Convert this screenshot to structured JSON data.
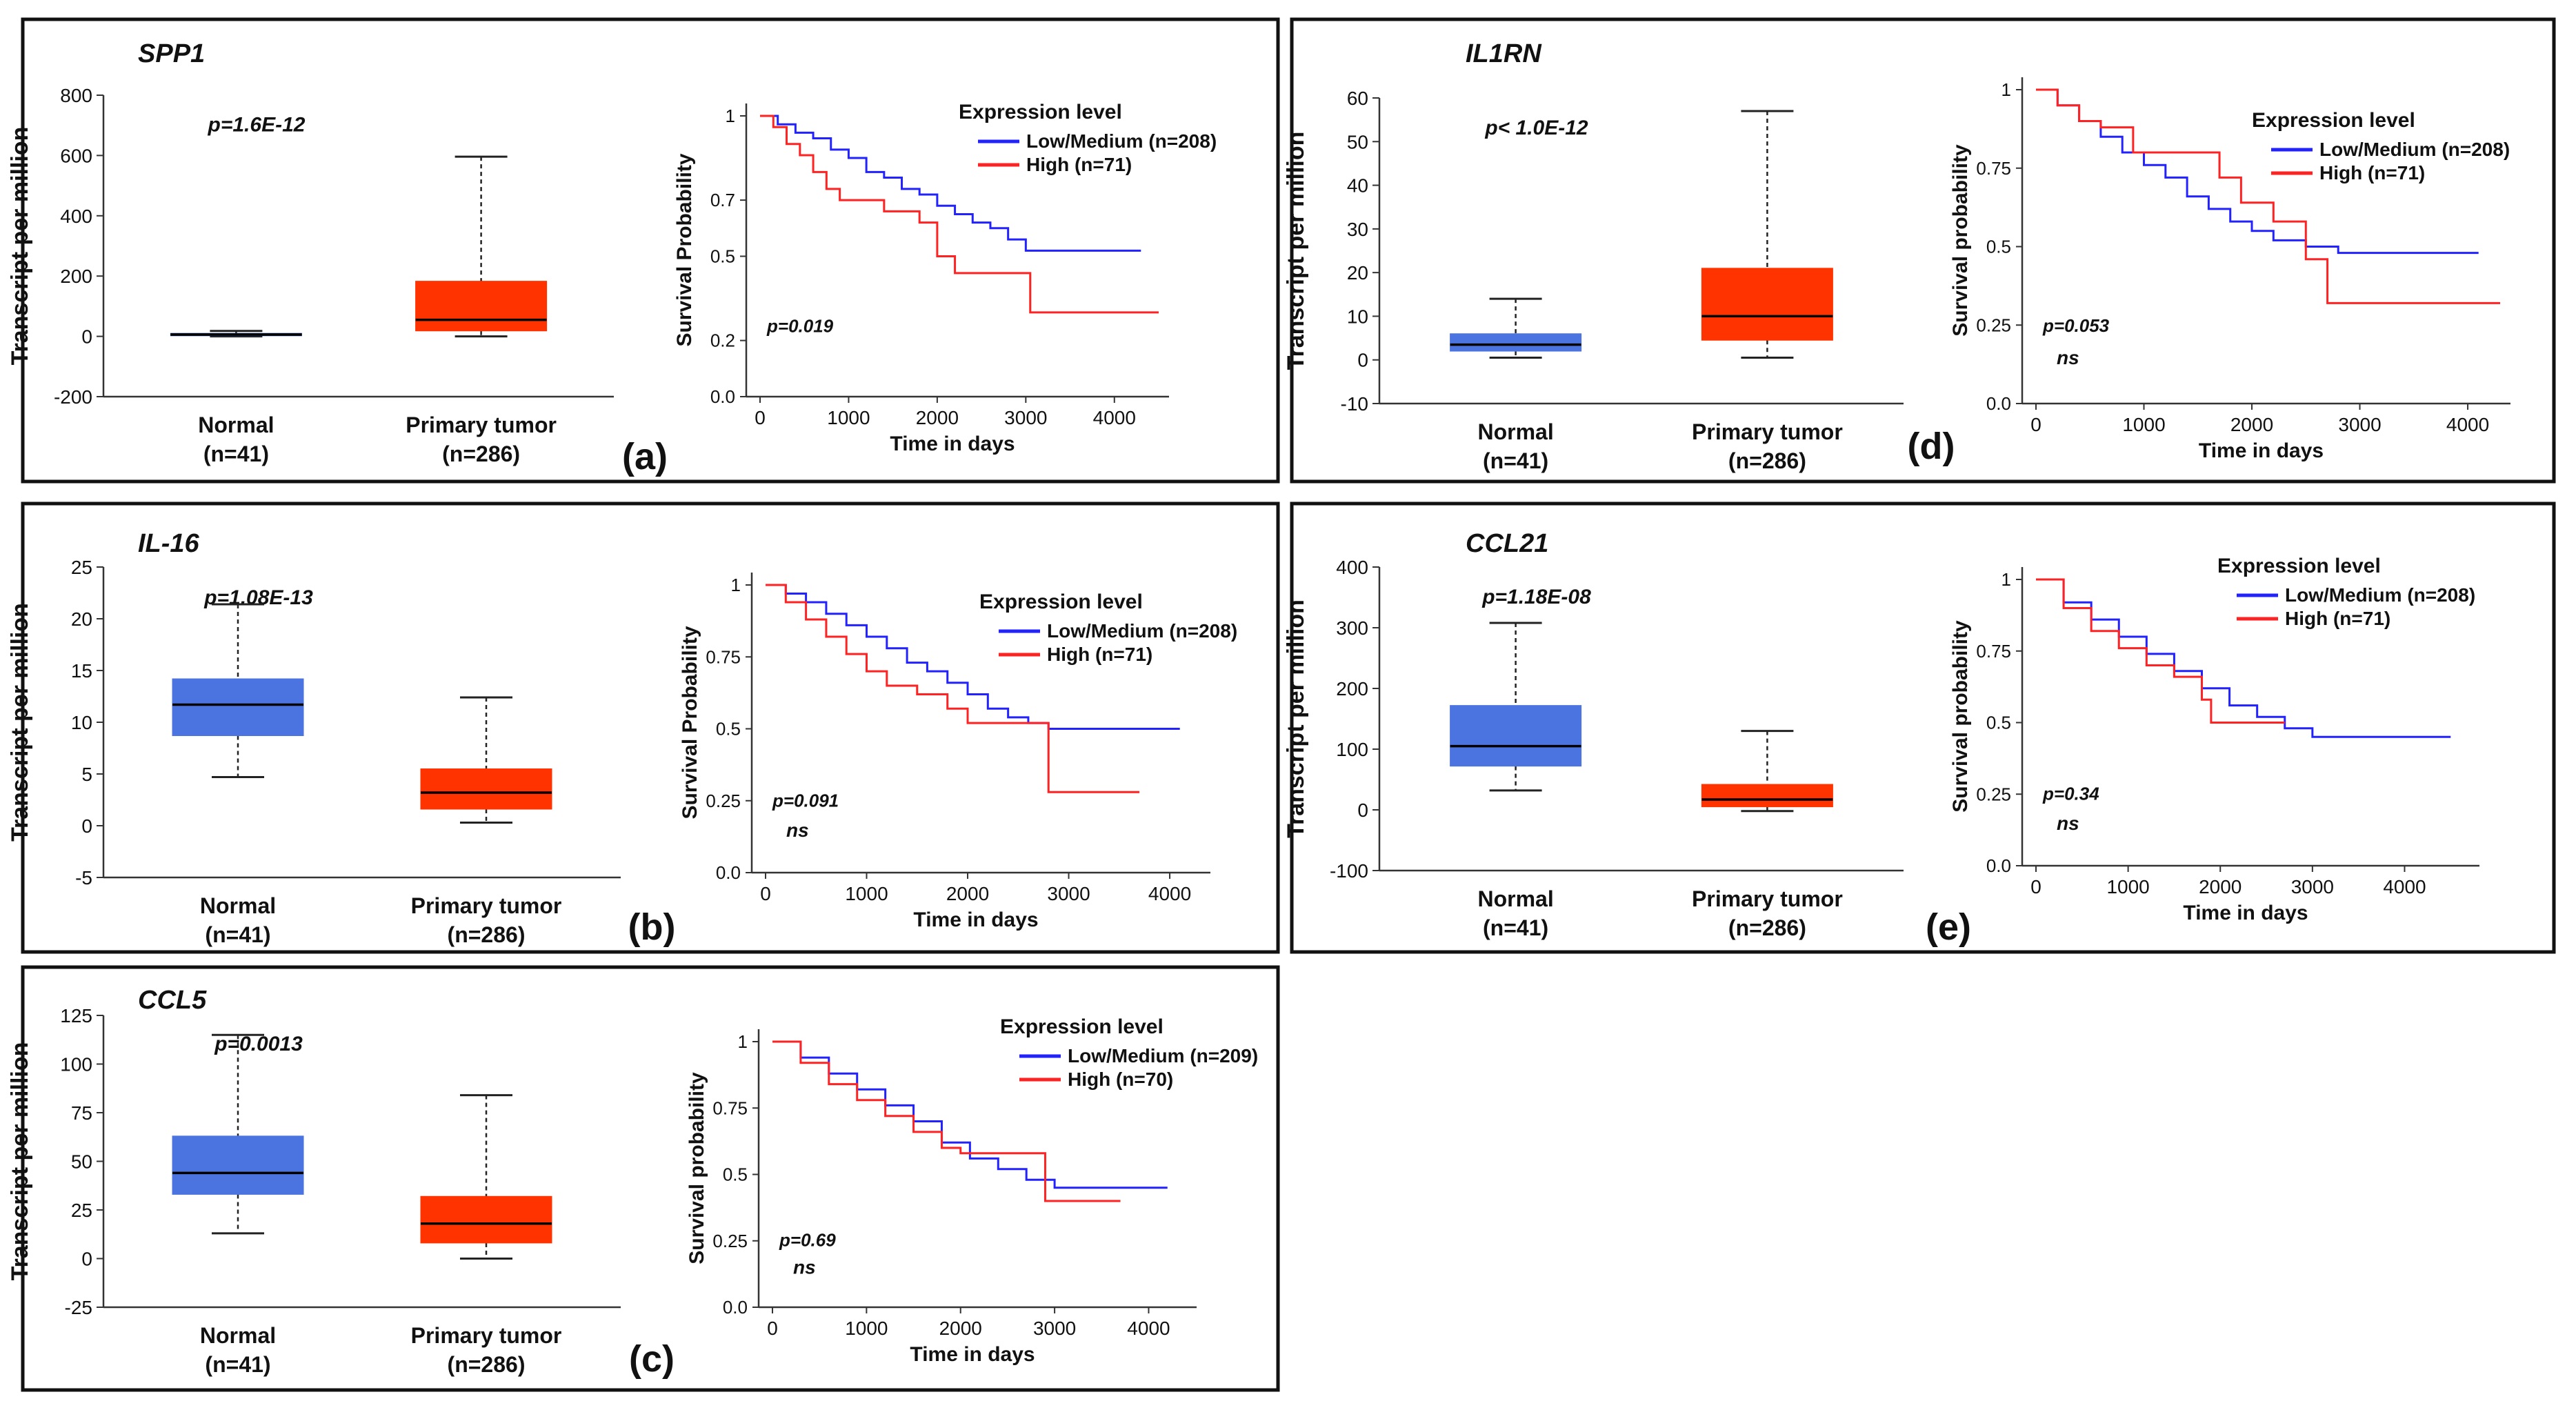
{
  "panels": [
    {
      "id": "a",
      "gene": "SPP1",
      "letter": "(a)",
      "box": {
        "ylabel": "Transcript per million",
        "yticks": [
          "800",
          "600",
          "400",
          "200",
          "0",
          "-200"
        ],
        "ymin": -200,
        "ymax": 800,
        "pvalue": "p=1.6E-12",
        "groups": [
          {
            "name": "Normal",
            "n": "(n=41)",
            "color": "#1f3b8f",
            "q1": 2,
            "median": 6,
            "q3": 10,
            "wmin": 0,
            "wmax": 18
          },
          {
            "name": "Primary tumor",
            "n": "(n=286)",
            "color": "#ff3300",
            "q1": 18,
            "median": 55,
            "q3": 183,
            "wmin": 0,
            "wmax": 596
          }
        ]
      },
      "km": {
        "ylabel": "Survival Probability",
        "xlabel": "Time in days",
        "yticks": [
          "1",
          "0.7",
          "0.5",
          "0.2",
          "0.0"
        ],
        "xticks": [
          "0",
          "1000",
          "2000",
          "3000",
          "4000"
        ],
        "xmax": 4500,
        "pvalue": "p=0.019",
        "ns": "",
        "legend_title": "Expression level",
        "series": [
          {
            "name": "Low/Medium (n=208)",
            "color": "#2222ff",
            "points": [
              [
                0,
                1
              ],
              [
                200,
                0.97
              ],
              [
                400,
                0.94
              ],
              [
                600,
                0.92
              ],
              [
                800,
                0.88
              ],
              [
                1000,
                0.85
              ],
              [
                1200,
                0.8
              ],
              [
                1400,
                0.78
              ],
              [
                1600,
                0.74
              ],
              [
                1800,
                0.72
              ],
              [
                2000,
                0.68
              ],
              [
                2200,
                0.65
              ],
              [
                2400,
                0.62
              ],
              [
                2600,
                0.6
              ],
              [
                2800,
                0.56
              ],
              [
                3000,
                0.52
              ],
              [
                3500,
                0.52
              ],
              [
                4300,
                0.52
              ]
            ]
          },
          {
            "name": "High (n=71)",
            "color": "#ff2222",
            "points": [
              [
                0,
                1
              ],
              [
                150,
                0.96
              ],
              [
                300,
                0.9
              ],
              [
                450,
                0.86
              ],
              [
                600,
                0.8
              ],
              [
                750,
                0.74
              ],
              [
                900,
                0.7
              ],
              [
                1200,
                0.7
              ],
              [
                1400,
                0.66
              ],
              [
                1800,
                0.62
              ],
              [
                2000,
                0.5
              ],
              [
                2200,
                0.44
              ],
              [
                2900,
                0.44
              ],
              [
                3050,
                0.3
              ],
              [
                4500,
                0.3
              ]
            ]
          }
        ]
      }
    },
    {
      "id": "b",
      "gene": "IL-16",
      "letter": "(b)",
      "box": {
        "ylabel": "Transcript per million",
        "yticks": [
          "25",
          "20",
          "15",
          "10",
          "5",
          "0",
          "-5"
        ],
        "ymin": -5,
        "ymax": 25,
        "pvalue": "p=1.08E-13",
        "groups": [
          {
            "name": "Normal",
            "n": "(n=41)",
            "color": "#4c74e0",
            "q1": 8.7,
            "median": 11.7,
            "q3": 14.2,
            "wmin": 4.7,
            "wmax": 21.4
          },
          {
            "name": "Primary tumor",
            "n": "(n=286)",
            "color": "#ff3300",
            "q1": 1.6,
            "median": 3.2,
            "q3": 5.5,
            "wmin": 0.3,
            "wmax": 12.4
          }
        ]
      },
      "km": {
        "ylabel": "Survival Probability",
        "xlabel": "Time in days",
        "yticks": [
          "1",
          "0.75",
          "0.5",
          "0.25",
          "0.0"
        ],
        "xticks": [
          "0",
          "1000",
          "2000",
          "3000",
          "4000"
        ],
        "xmax": 4300,
        "pvalue": "p=0.091",
        "ns": "ns",
        "legend_title": "Expression level",
        "series": [
          {
            "name": "Low/Medium (n=208)",
            "color": "#2222ff",
            "points": [
              [
                0,
                1
              ],
              [
                200,
                0.97
              ],
              [
                400,
                0.94
              ],
              [
                600,
                0.9
              ],
              [
                800,
                0.86
              ],
              [
                1000,
                0.82
              ],
              [
                1200,
                0.78
              ],
              [
                1400,
                0.73
              ],
              [
                1600,
                0.7
              ],
              [
                1800,
                0.66
              ],
              [
                2000,
                0.62
              ],
              [
                2200,
                0.57
              ],
              [
                2400,
                0.54
              ],
              [
                2600,
                0.52
              ],
              [
                2800,
                0.5
              ],
              [
                3200,
                0.5
              ],
              [
                4100,
                0.5
              ]
            ]
          },
          {
            "name": "High (n=71)",
            "color": "#ff2222",
            "points": [
              [
                0,
                1
              ],
              [
                200,
                0.94
              ],
              [
                400,
                0.88
              ],
              [
                600,
                0.82
              ],
              [
                800,
                0.76
              ],
              [
                1000,
                0.7
              ],
              [
                1200,
                0.65
              ],
              [
                1500,
                0.62
              ],
              [
                1800,
                0.57
              ],
              [
                2000,
                0.52
              ],
              [
                2600,
                0.52
              ],
              [
                2800,
                0.28
              ],
              [
                3700,
                0.28
              ]
            ]
          }
        ]
      }
    },
    {
      "id": "c",
      "gene": "CCL5",
      "letter": "(c)",
      "box": {
        "ylabel": "Transcript per million",
        "yticks": [
          "125",
          "100",
          "75",
          "50",
          "25",
          "0",
          "-25"
        ],
        "ymin": -25,
        "ymax": 125,
        "pvalue": "p=0.0013",
        "groups": [
          {
            "name": "Normal",
            "n": "(n=41)",
            "color": "#4c74e0",
            "q1": 33,
            "median": 44,
            "q3": 63,
            "wmin": 13,
            "wmax": 115
          },
          {
            "name": "Primary tumor",
            "n": "(n=286)",
            "color": "#ff3300",
            "q1": 8,
            "median": 18,
            "q3": 32,
            "wmin": 0,
            "wmax": 84
          }
        ]
      },
      "km": {
        "ylabel": "Survival probability",
        "xlabel": "Time in days",
        "yticks": [
          "1",
          "0.75",
          "0.5",
          "0.25",
          "0.0"
        ],
        "xticks": [
          "0",
          "1000",
          "2000",
          "3000",
          "4000"
        ],
        "xmax": 4400,
        "pvalue": "p=0.69",
        "ns": "ns",
        "legend_title": "Expression level",
        "series": [
          {
            "name": "Low/Medium (n=209)",
            "color": "#2222ff",
            "points": [
              [
                0,
                1
              ],
              [
                300,
                0.94
              ],
              [
                600,
                0.88
              ],
              [
                900,
                0.82
              ],
              [
                1200,
                0.76
              ],
              [
                1500,
                0.7
              ],
              [
                1800,
                0.62
              ],
              [
                2100,
                0.56
              ],
              [
                2400,
                0.52
              ],
              [
                2700,
                0.48
              ],
              [
                3000,
                0.45
              ],
              [
                4200,
                0.45
              ]
            ]
          },
          {
            "name": "High (n=70)",
            "color": "#ff2222",
            "points": [
              [
                0,
                1
              ],
              [
                300,
                0.92
              ],
              [
                600,
                0.84
              ],
              [
                900,
                0.78
              ],
              [
                1200,
                0.72
              ],
              [
                1500,
                0.66
              ],
              [
                1800,
                0.6
              ],
              [
                2000,
                0.58
              ],
              [
                2800,
                0.58
              ],
              [
                2900,
                0.4
              ],
              [
                3700,
                0.4
              ]
            ]
          }
        ]
      }
    },
    {
      "id": "d",
      "gene": "IL1RN",
      "letter": "(d)",
      "box": {
        "ylabel": "Transcript per million",
        "yticks": [
          "60",
          "50",
          "40",
          "30",
          "20",
          "10",
          "0",
          "-10"
        ],
        "ymin": -10,
        "ymax": 60,
        "pvalue": "p< 1.0E-12",
        "groups": [
          {
            "name": "Normal",
            "n": "(n=41)",
            "color": "#4c74e0",
            "q1": 2,
            "median": 3.5,
            "q3": 6,
            "wmin": 0.5,
            "wmax": 14
          },
          {
            "name": "Primary tumor",
            "n": "(n=286)",
            "color": "#ff3300",
            "q1": 4.5,
            "median": 10,
            "q3": 21,
            "wmin": 0.5,
            "wmax": 57
          }
        ]
      },
      "km": {
        "ylabel": "Survival probability",
        "xlabel": "Time in days",
        "yticks": [
          "1",
          "0.75",
          "0.5",
          "0.25",
          "0.0"
        ],
        "xticks": [
          "0",
          "1000",
          "2000",
          "3000",
          "4000"
        ],
        "xmax": 4300,
        "pvalue": "p=0.053",
        "ns": "ns",
        "legend_title": "Expression level",
        "series": [
          {
            "name": "Low/Medium (n=208)",
            "color": "#2222ff",
            "points": [
              [
                0,
                1
              ],
              [
                200,
                0.95
              ],
              [
                400,
                0.9
              ],
              [
                600,
                0.85
              ],
              [
                800,
                0.8
              ],
              [
                1000,
                0.76
              ],
              [
                1200,
                0.72
              ],
              [
                1400,
                0.66
              ],
              [
                1600,
                0.62
              ],
              [
                1800,
                0.58
              ],
              [
                2000,
                0.55
              ],
              [
                2200,
                0.52
              ],
              [
                2500,
                0.5
              ],
              [
                2800,
                0.48
              ],
              [
                4100,
                0.48
              ]
            ]
          },
          {
            "name": "High (n=71)",
            "color": "#ff2222",
            "points": [
              [
                0,
                1
              ],
              [
                200,
                0.95
              ],
              [
                400,
                0.9
              ],
              [
                600,
                0.88
              ],
              [
                900,
                0.8
              ],
              [
                1500,
                0.8
              ],
              [
                1700,
                0.72
              ],
              [
                1900,
                0.64
              ],
              [
                2200,
                0.58
              ],
              [
                2500,
                0.46
              ],
              [
                2700,
                0.32
              ],
              [
                4300,
                0.32
              ]
            ]
          }
        ]
      }
    },
    {
      "id": "e",
      "gene": "CCL21",
      "letter": "(e)",
      "box": {
        "ylabel": "Transcript per million",
        "yticks": [
          "400",
          "300",
          "200",
          "100",
          "0",
          "-100"
        ],
        "ymin": -100,
        "ymax": 400,
        "pvalue": "p=1.18E-08",
        "groups": [
          {
            "name": "Normal",
            "n": "(n=41)",
            "color": "#4c74e0",
            "q1": 72,
            "median": 105,
            "q3": 172,
            "wmin": 32,
            "wmax": 308
          },
          {
            "name": "Primary tumor",
            "n": "(n=286)",
            "color": "#ff3300",
            "q1": 5,
            "median": 17,
            "q3": 42,
            "wmin": -2,
            "wmax": 130
          }
        ]
      },
      "km": {
        "ylabel": "Survival probability",
        "xlabel": "Time in days",
        "yticks": [
          "1",
          "0.75",
          "0.5",
          "0.25",
          "0.0"
        ],
        "xticks": [
          "0",
          "1000",
          "2000",
          "3000",
          "4000"
        ],
        "xmax": 4700,
        "pvalue": "p=0.34",
        "ns": "ns",
        "legend_title": "Expression level",
        "series": [
          {
            "name": "Low/Medium (n=208)",
            "color": "#2222ff",
            "points": [
              [
                0,
                1
              ],
              [
                300,
                0.92
              ],
              [
                600,
                0.86
              ],
              [
                900,
                0.8
              ],
              [
                1200,
                0.74
              ],
              [
                1500,
                0.68
              ],
              [
                1800,
                0.62
              ],
              [
                2100,
                0.56
              ],
              [
                2400,
                0.52
              ],
              [
                2700,
                0.48
              ],
              [
                3000,
                0.45
              ],
              [
                4500,
                0.45
              ]
            ]
          },
          {
            "name": "High (n=71)",
            "color": "#ff2222",
            "points": [
              [
                0,
                1
              ],
              [
                300,
                0.9
              ],
              [
                600,
                0.82
              ],
              [
                900,
                0.76
              ],
              [
                1200,
                0.7
              ],
              [
                1500,
                0.66
              ],
              [
                1800,
                0.58
              ],
              [
                1900,
                0.5
              ],
              [
                2700,
                0.5
              ]
            ]
          }
        ]
      }
    }
  ]
}
